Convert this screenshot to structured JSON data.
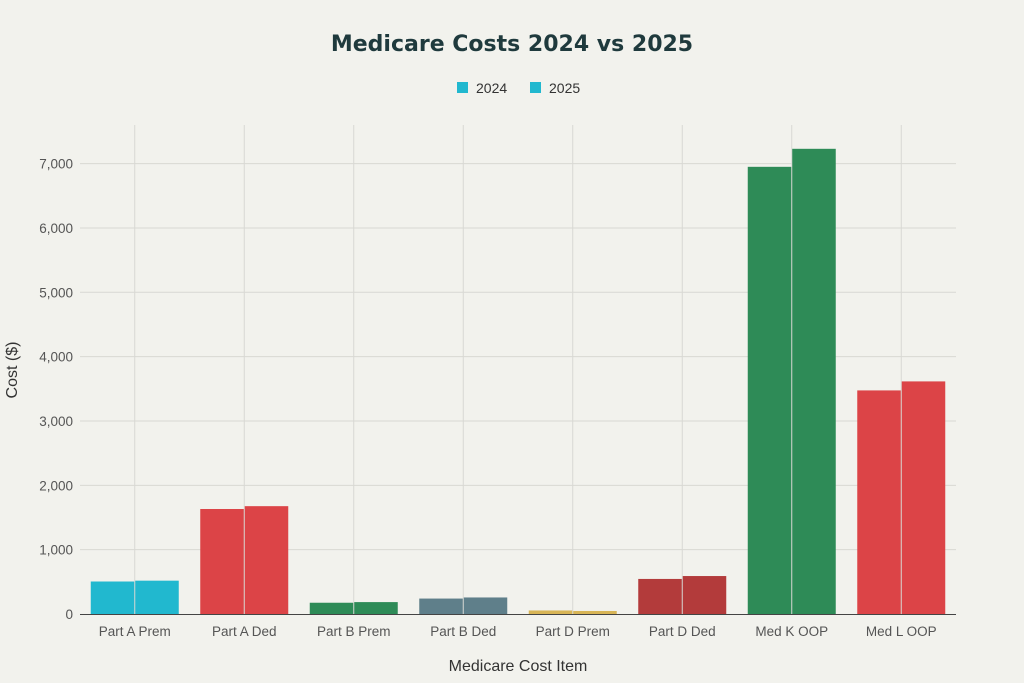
{
  "chart_data": {
    "type": "bar",
    "title": "Medicare Costs 2024 vs 2025",
    "xlabel": "Medicare Cost Item",
    "ylabel": "Cost ($)",
    "ylim": [
      0,
      7600
    ],
    "yticks": [
      0,
      1000,
      2000,
      3000,
      4000,
      5000,
      6000,
      7000
    ],
    "ytick_labels": [
      "0",
      "1,000",
      "2,000",
      "3,000",
      "4,000",
      "5,000",
      "6,000",
      "7,000"
    ],
    "categories": [
      "Part A Prem",
      "Part A Ded",
      "Part B Prem",
      "Part B Ded",
      "Part D Prem",
      "Part D Ded",
      "Med K OOP",
      "Med L OOP"
    ],
    "bar_colors": [
      "#21b8cf",
      "#dc4447",
      "#2e8b57",
      "#5f7f8a",
      "#d8b556",
      "#b33b3b",
      "#2e8b57",
      "#dc4447"
    ],
    "series": [
      {
        "name": "2024",
        "values": [
          505,
          1632,
          175,
          240,
          55,
          545,
          6950,
          3475
        ]
      },
      {
        "name": "2025",
        "values": [
          518,
          1676,
          185,
          257,
          47,
          590,
          7230,
          3615
        ]
      }
    ],
    "legend": {
      "position": "top-center",
      "color": "#21b8cf"
    },
    "grid": true
  }
}
